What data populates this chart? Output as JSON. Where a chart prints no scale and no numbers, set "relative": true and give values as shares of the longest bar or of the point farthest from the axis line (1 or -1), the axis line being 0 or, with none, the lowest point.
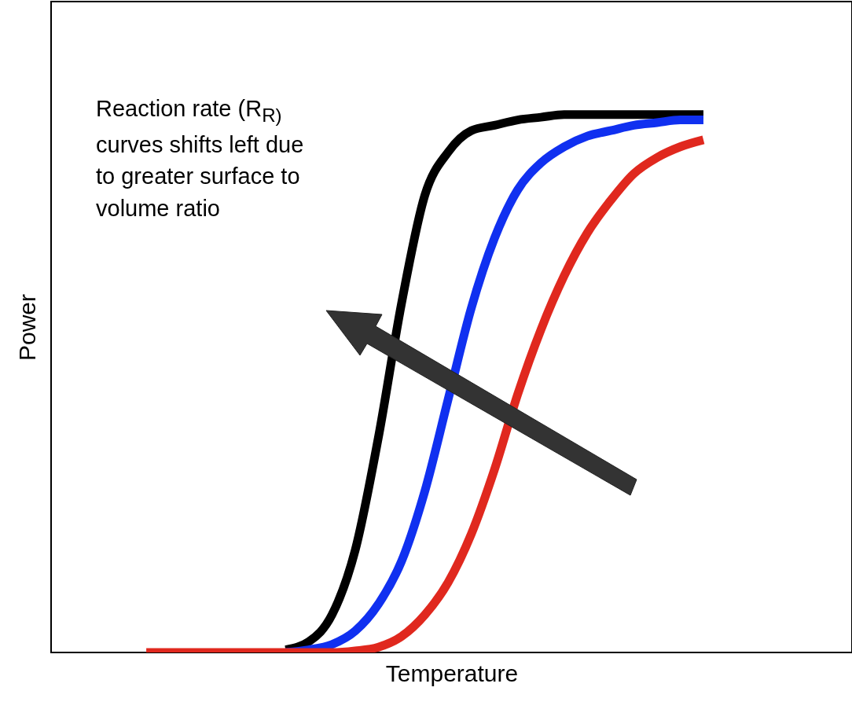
{
  "chart_data": {
    "type": "line",
    "xlabel": "Temperature",
    "ylabel": "Power",
    "relative": true,
    "categories": [
      null,
      null,
      null,
      null,
      null,
      null,
      null,
      null,
      null,
      null,
      null,
      null,
      null,
      null,
      null,
      null,
      null,
      null,
      null,
      null,
      null,
      null,
      null,
      null,
      null
    ],
    "series": [
      {
        "color": "#000000",
        "values": [
          null,
          null,
          null,
          null,
          null,
          null,
          0.005,
          0.02,
          0.07,
          0.19,
          0.4,
          0.65,
          0.85,
          0.93,
          0.97,
          0.98,
          0.99,
          0.995,
          1,
          1,
          1,
          1,
          1,
          1,
          1
        ]
      },
      {
        "color": "#1030f0",
        "values": [
          null,
          null,
          null,
          null,
          null,
          null,
          0,
          0.005,
          0.015,
          0.04,
          0.09,
          0.17,
          0.3,
          0.47,
          0.64,
          0.77,
          0.86,
          0.91,
          0.94,
          0.96,
          0.97,
          0.98,
          0.985,
          0.99,
          0.99
        ]
      },
      {
        "color": "#e0281e",
        "values": [
          0,
          0,
          0,
          0,
          0,
          0,
          0,
          0,
          0,
          0.003,
          0.01,
          0.03,
          0.07,
          0.13,
          0.22,
          0.34,
          0.48,
          0.6,
          0.7,
          0.78,
          0.84,
          0.89,
          0.92,
          0.94,
          0.953
        ]
      }
    ],
    "annotations": [
      "Reaction rate (R$_{R)}$ curves shifts left due to greater surface to volume ratio"
    ]
  }
}
